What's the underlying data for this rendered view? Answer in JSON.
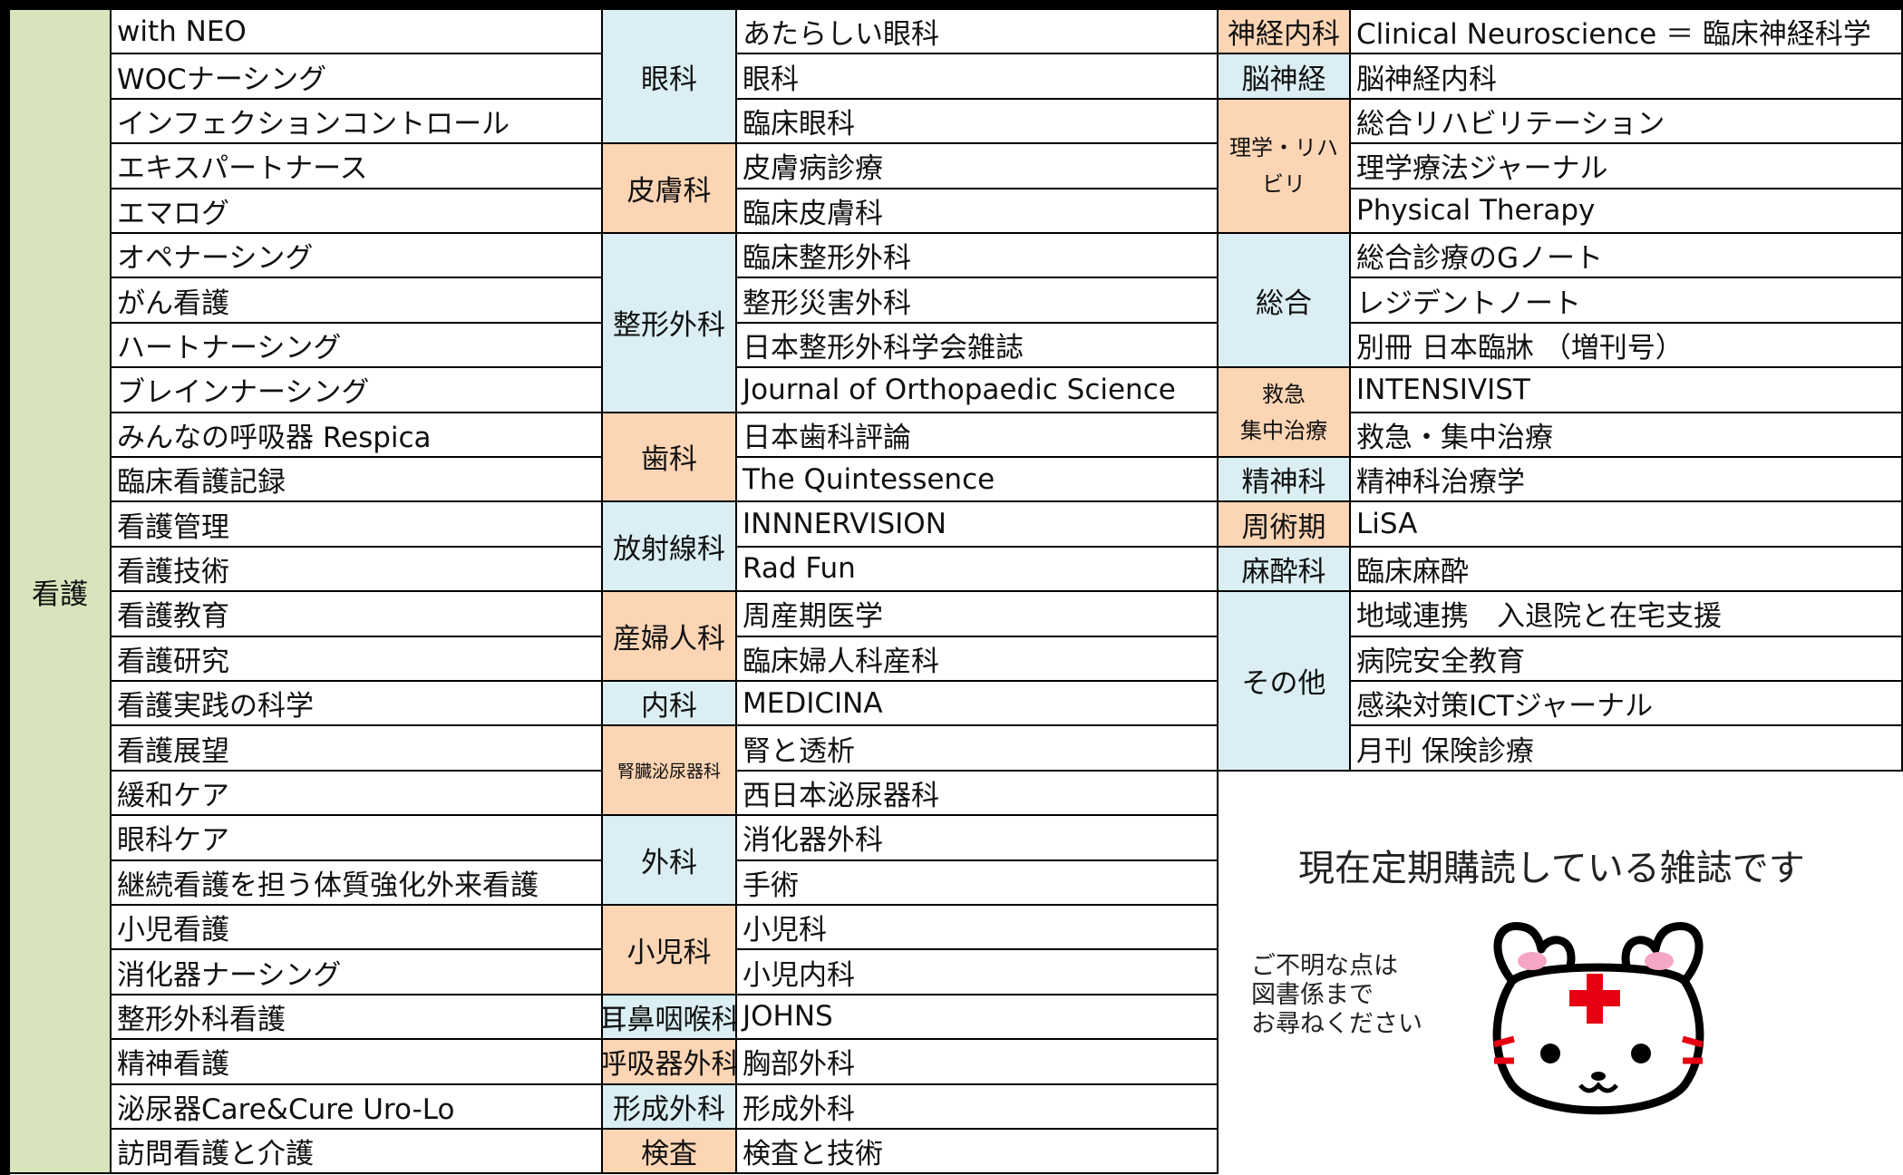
{
  "nursing": {
    "label": "看護",
    "color": "#d8e4bc",
    "items": [
      "with NEO",
      "WOCナーシング",
      "インフェクションコントロール",
      "エキスパートナース",
      "エマログ",
      "オペナーシング",
      "がん看護",
      "ハートナーシング",
      "ブレインナーシング",
      "みんなの呼吸器 Respica",
      "臨床看護記録",
      "看護管理",
      "看護技術",
      "看護教育",
      "看護研究",
      "看護実践の科学",
      "看護展望",
      "緩和ケア",
      "眼科ケア",
      "継続看護を担う体質強化外来看護",
      "小児看護",
      "消化器ナーシング",
      "整形外科看護",
      "精神看護",
      "泌尿器Care&Cure Uro-Lo",
      "訪問看護と介護"
    ]
  },
  "middle": [
    {
      "label": "眼科",
      "color": "#daeef3",
      "items": [
        "あたらしい眼科",
        "眼科",
        "臨床眼科"
      ]
    },
    {
      "label": "皮膚科",
      "color": "#fcd5b4",
      "items": [
        "皮膚病診療",
        "臨床皮膚科"
      ]
    },
    {
      "label": "整形外科",
      "color": "#daeef3",
      "items": [
        "臨床整形外科",
        "整形災害外科",
        "日本整形外科学会雑誌",
        "Journal of Orthopaedic Science"
      ]
    },
    {
      "label": "歯科",
      "color": "#fcd5b4",
      "items": [
        "日本歯科評論",
        "The Quintessence"
      ]
    },
    {
      "label": "放射線科",
      "color": "#daeef3",
      "items": [
        "INNNERVISION",
        "Rad Fun"
      ]
    },
    {
      "label": "産婦人科",
      "color": "#fcd5b4",
      "items": [
        "周産期医学",
        "臨床婦人科産科"
      ]
    },
    {
      "label": "内科",
      "color": "#daeef3",
      "items": [
        "MEDICINA"
      ]
    },
    {
      "label": "腎臓泌尿器科",
      "color": "#fcd5b4",
      "items": [
        "腎と透析",
        "西日本泌尿器科"
      ]
    },
    {
      "label": "外科",
      "color": "#daeef3",
      "items": [
        "消化器外科",
        "手術"
      ]
    },
    {
      "label": "小児科",
      "color": "#fcd5b4",
      "items": [
        "小児科",
        "小児内科"
      ]
    },
    {
      "label": "耳鼻咽喉科",
      "color": "#daeef3",
      "items": [
        "JOHNS"
      ]
    },
    {
      "label": "呼吸器外科",
      "color": "#fcd5b4",
      "items": [
        "胸部外科"
      ]
    },
    {
      "label": "形成外科",
      "color": "#daeef3",
      "items": [
        "形成外科"
      ]
    },
    {
      "label": "検査",
      "color": "#fcd5b4",
      "items": [
        "検査と技術"
      ]
    }
  ],
  "right": [
    {
      "label": "神経内科",
      "color": "#fcd5b4",
      "items": [
        "Clinical Neuroscience ＝ 臨床神経科学"
      ]
    },
    {
      "label": "脳神経",
      "color": "#daeef3",
      "items": [
        "脳神経内科"
      ]
    },
    {
      "label": [
        "理学・リハ",
        "ビリ"
      ],
      "color": "#fcd5b4",
      "items": [
        "総合リハビリテーション",
        "理学療法ジャーナル",
        "Physical Therapy"
      ]
    },
    {
      "label": "総合",
      "color": "#daeef3",
      "items": [
        "総合診療のGノート",
        "レジデントノート",
        "別冊 日本臨牀 （増刊号）"
      ]
    },
    {
      "label": [
        "救急",
        "集中治療"
      ],
      "color": "#fcd5b4",
      "items": [
        "INTENSIVIST",
        "救急・集中治療"
      ]
    },
    {
      "label": "精神科",
      "color": "#daeef3",
      "items": [
        "精神科治療学"
      ]
    },
    {
      "label": "周術期",
      "color": "#fcd5b4",
      "items": [
        "LiSA"
      ]
    },
    {
      "label": "麻酔科",
      "color": "#daeef3",
      "items": [
        "臨床麻酔"
      ]
    },
    {
      "label": "その他",
      "color": "#daeef3",
      "items": [
        "地域連携　入退院と在宅支援",
        "病院安全教育",
        "感染対策ICTジャーナル",
        "月刊 保険診療"
      ]
    }
  ],
  "notice": "現在定期購読している雑誌です",
  "contact": [
    "ご不明な点は",
    "図書係まで",
    "お尋ねください"
  ]
}
